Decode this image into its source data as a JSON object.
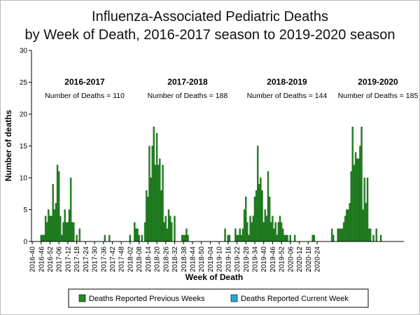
{
  "chart_data": {
    "type": "bar",
    "title_lines": [
      "Influenza-Associated Pediatric Deaths",
      "by Week of Death, 2016-2017 season to 2019-2020 season"
    ],
    "xlabel": "Week of Death",
    "ylabel": "Number of deaths",
    "ylim": [
      0,
      30
    ],
    "yticks": [
      0,
      5,
      10,
      15,
      20,
      25,
      30
    ],
    "x_tick_labels": [
      "2016-40",
      "2016-46",
      "2016-52",
      "2017-06",
      "2017-12",
      "2017-18",
      "2017-24",
      "2017-30",
      "2017-36",
      "2017-42",
      "2017-48",
      "2018-02",
      "2018-08",
      "2018-14",
      "2018-20",
      "2018-26",
      "2018-32",
      "2018-38",
      "2018-44",
      "2018-50",
      "2019-04",
      "2019-10",
      "2019-16",
      "2019-22",
      "2019-28",
      "2019-34",
      "2019-40",
      "2019-46",
      "2019-52",
      "2020-06",
      "2020-12",
      "2020-18",
      "2020-24"
    ],
    "grid": false,
    "legend_position": "bottom",
    "colors": {
      "previous": "#228b22",
      "current": "#29a3dc",
      "bar_edge": "#0b3d0b"
    },
    "seasons": [
      {
        "name": "2016-2017",
        "count_label": "Number of Deaths = 110"
      },
      {
        "name": "2017-2018",
        "count_label": "Number of Deaths = 188"
      },
      {
        "name": "2018-2019",
        "count_label": "Number of Deaths = 144"
      },
      {
        "name": "2019-2020",
        "count_label": "Number of Deaths = 185"
      }
    ],
    "series": [
      {
        "name": "Deaths Reported Previous Weeks",
        "values": [
          0,
          0,
          0,
          0,
          0,
          0,
          1,
          1,
          1,
          4,
          3,
          5,
          4,
          4,
          9,
          5,
          6,
          12,
          11,
          4,
          1,
          3,
          5,
          3,
          3,
          5,
          10,
          3,
          3,
          0,
          1,
          0,
          2,
          0,
          0,
          0,
          0,
          0,
          0,
          0,
          0,
          0,
          0,
          0,
          0,
          0,
          0,
          0,
          0,
          1,
          0,
          0,
          1,
          0,
          0,
          0,
          0,
          0,
          0,
          0,
          0,
          0,
          0,
          0,
          0,
          0,
          1,
          0,
          0,
          3,
          2,
          2,
          1,
          0,
          1,
          0,
          3,
          8,
          7,
          15,
          10,
          15,
          18,
          12,
          17,
          12,
          13,
          8,
          12,
          3,
          4,
          2,
          5,
          4,
          3,
          0,
          4,
          0,
          0,
          0,
          0,
          1,
          1,
          1,
          2,
          1,
          0,
          0,
          0,
          0,
          0,
          0,
          0,
          0,
          0,
          0,
          0,
          0,
          0,
          0,
          0,
          0,
          0,
          0,
          0,
          0,
          0,
          0,
          0,
          0,
          2,
          0,
          1,
          1,
          0,
          0,
          0,
          2,
          1,
          1,
          2,
          1,
          2,
          5,
          7,
          3,
          1,
          4,
          3,
          4,
          7,
          8,
          15,
          9,
          10,
          8,
          3,
          5,
          4,
          11,
          7,
          3,
          4,
          2,
          3,
          1,
          3,
          4,
          3,
          2,
          1,
          1,
          1,
          0,
          1,
          0,
          0,
          1,
          0,
          0,
          0,
          0,
          0,
          0,
          0,
          0,
          0,
          0,
          0,
          1,
          1,
          0,
          0,
          0,
          0,
          0,
          0,
          0,
          0,
          0,
          0,
          0,
          2,
          1,
          0,
          0,
          2,
          2,
          2,
          2,
          3,
          4,
          5,
          5,
          6,
          11,
          18,
          12,
          14,
          13,
          13,
          15,
          18,
          5,
          10,
          6,
          10,
          2,
          2,
          0,
          1,
          0,
          2,
          0,
          0,
          1,
          0,
          0,
          0,
          0,
          0,
          0,
          0,
          0,
          0,
          0,
          0,
          0,
          0,
          0,
          0
        ]
      },
      {
        "name": "Deaths Reported Current Week",
        "values": []
      }
    ]
  }
}
